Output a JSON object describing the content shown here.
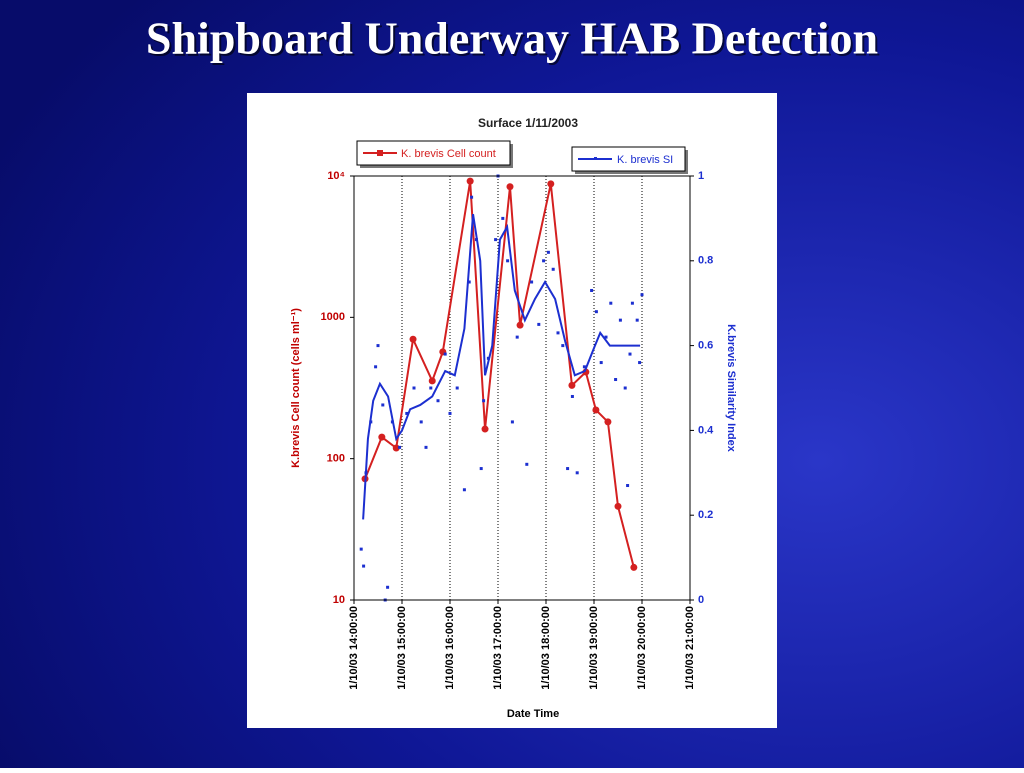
{
  "slide_title": "Shipboard Underway HAB Detection",
  "chart_data": {
    "type": "line",
    "title": "Surface 1/11/2003",
    "xlabel": "Date Time",
    "ylabel": "K.brevis Cell count (cells ml⁻¹)",
    "y2label": "K.brevis Similarity Index",
    "xlim": [
      14,
      21
    ],
    "xticks": [
      {
        "value": 14,
        "label": "1/10/03 14:00:00"
      },
      {
        "value": 15,
        "label": "1/10/03 15:00:00"
      },
      {
        "value": 16,
        "label": "1/10/03 16:00:00"
      },
      {
        "value": 17,
        "label": "1/10/03 17:00:00"
      },
      {
        "value": 18,
        "label": "1/10/03 18:00:00"
      },
      {
        "value": 19,
        "label": "1/10/03 19:00:00"
      },
      {
        "value": 20,
        "label": "1/10/03 20:00:00"
      },
      {
        "value": 21,
        "label": "1/10/03 21:00:00"
      }
    ],
    "ylim": [
      10,
      10000
    ],
    "log_y": true,
    "yticks": [
      10,
      100,
      1000,
      {
        "value": 10000,
        "label": "10⁴"
      }
    ],
    "y2lim": [
      0,
      1
    ],
    "y2ticks": [
      0,
      0.2,
      0.4,
      0.6,
      0.8,
      1
    ],
    "grid": true,
    "series": [
      {
        "name": "K. brevis Cell count",
        "color": "#d42020",
        "x": [
          14.23,
          14.58,
          14.88,
          15.23,
          15.63,
          15.85,
          16.42,
          16.73,
          17.25,
          17.46,
          18.1,
          18.54,
          18.83,
          19.04,
          19.29,
          19.5,
          19.83
        ],
        "values": [
          72,
          142,
          119,
          700,
          355,
          570,
          9200,
          162,
          8400,
          880,
          8800,
          330,
          410,
          221,
          182,
          46,
          17
        ]
      },
      {
        "name": "K. brevis SI",
        "color": "#1c2fd0",
        "axis": "y2",
        "x": [
          14.19,
          14.29,
          14.4,
          14.54,
          14.71,
          14.88,
          15.0,
          15.17,
          15.38,
          15.63,
          15.9,
          16.1,
          16.3,
          16.48,
          16.63,
          16.73,
          16.88,
          17.04,
          17.19,
          17.35,
          17.56,
          17.77,
          17.98,
          18.19,
          18.4,
          18.6,
          18.81,
          19.02,
          19.13,
          19.33,
          19.65,
          19.96
        ],
        "values": [
          0.19,
          0.38,
          0.47,
          0.51,
          0.48,
          0.38,
          0.4,
          0.45,
          0.46,
          0.48,
          0.54,
          0.53,
          0.64,
          0.91,
          0.8,
          0.53,
          0.6,
          0.85,
          0.88,
          0.73,
          0.66,
          0.71,
          0.75,
          0.71,
          0.61,
          0.53,
          0.54,
          0.6,
          0.63,
          0.6,
          0.6,
          0.6
        ],
        "scatter_x": [
          14.15,
          14.2,
          14.25,
          14.35,
          14.45,
          14.5,
          14.6,
          14.65,
          14.7,
          14.8,
          14.95,
          15.1,
          15.25,
          15.4,
          15.5,
          15.6,
          15.75,
          15.9,
          16.0,
          16.15,
          16.3,
          16.4,
          16.45,
          16.55,
          16.65,
          16.7,
          16.8,
          16.95,
          17.0,
          17.1,
          17.2,
          17.3,
          17.4,
          17.6,
          17.7,
          17.85,
          17.95,
          18.05,
          18.15,
          18.25,
          18.35,
          18.45,
          18.55,
          18.65,
          18.8,
          18.95,
          19.05,
          19.15,
          19.25,
          19.35,
          19.45,
          19.55,
          19.65,
          19.7,
          19.75,
          19.8,
          19.9,
          19.95,
          20.0
        ],
        "scatter_values": [
          0.12,
          0.08,
          0.3,
          0.42,
          0.55,
          0.6,
          0.46,
          0.0,
          0.03,
          0.42,
          0.36,
          0.44,
          0.5,
          0.42,
          0.36,
          0.5,
          0.47,
          0.58,
          0.44,
          0.5,
          0.26,
          0.75,
          0.95,
          0.85,
          0.31,
          0.47,
          0.57,
          0.85,
          1.0,
          0.9,
          0.8,
          0.42,
          0.62,
          0.32,
          0.75,
          0.65,
          0.8,
          0.82,
          0.78,
          0.63,
          0.6,
          0.31,
          0.48,
          0.3,
          0.55,
          0.73,
          0.68,
          0.56,
          0.62,
          0.7,
          0.52,
          0.66,
          0.5,
          0.27,
          0.58,
          0.7,
          0.66,
          0.56,
          0.72
        ]
      }
    ]
  }
}
